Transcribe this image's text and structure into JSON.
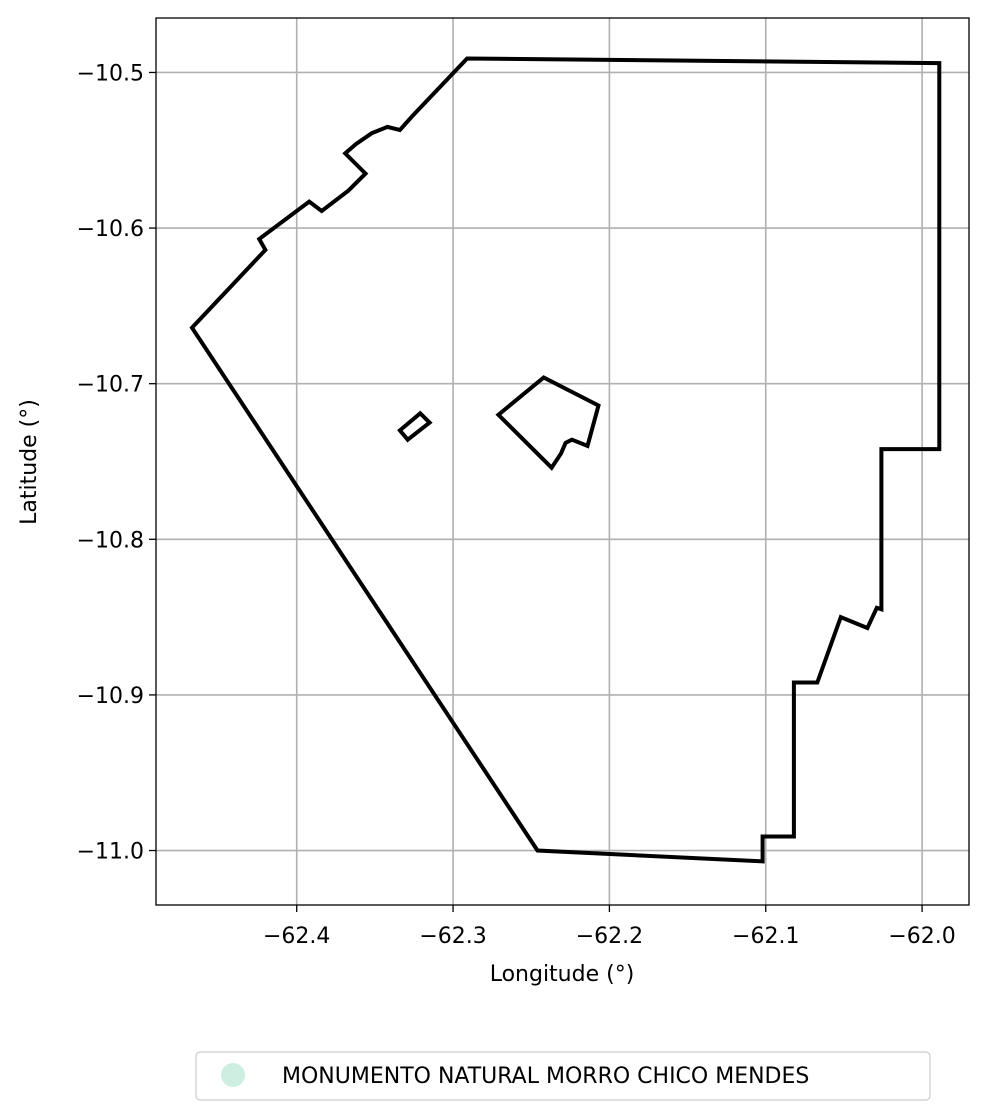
{
  "chart_data": {
    "type": "map",
    "xlabel": "Longitude (°)",
    "ylabel": "Latitude (°)",
    "xlim": [
      -62.49,
      -61.97
    ],
    "ylim": [
      -11.035,
      -10.465
    ],
    "grid": true,
    "x_ticks": [
      {
        "value": -62.4,
        "label": "−62.4"
      },
      {
        "value": -62.3,
        "label": "−62.3"
      },
      {
        "value": -62.2,
        "label": "−62.2"
      },
      {
        "value": -62.1,
        "label": "−62.1"
      },
      {
        "value": -62.0,
        "label": "−62.0"
      }
    ],
    "y_ticks": [
      {
        "value": -10.5,
        "label": "−10.5"
      },
      {
        "value": -10.6,
        "label": "−10.6"
      },
      {
        "value": -10.7,
        "label": "−10.7"
      },
      {
        "value": -10.8,
        "label": "−10.8"
      },
      {
        "value": -10.9,
        "label": "−10.9"
      },
      {
        "value": -11.0,
        "label": "−11.0"
      }
    ],
    "legend": {
      "placement": "bottom-center",
      "entries": [
        {
          "label": "MONUMENTO NATURAL MORRO CHICO MENDES",
          "color": "#cdeee0"
        }
      ]
    },
    "boundary_color": "#000000",
    "polygons": [
      {
        "name": "outer-boundary",
        "coords": [
          [
            -62.291,
            -10.491
          ],
          [
            -61.989,
            -10.494
          ],
          [
            -61.989,
            -10.742
          ],
          [
            -62.026,
            -10.742
          ],
          [
            -62.026,
            -10.845
          ],
          [
            -62.029,
            -10.844
          ],
          [
            -62.035,
            -10.857
          ],
          [
            -62.052,
            -10.85
          ],
          [
            -62.067,
            -10.892
          ],
          [
            -62.082,
            -10.892
          ],
          [
            -62.082,
            -10.991
          ],
          [
            -62.102,
            -10.991
          ],
          [
            -62.102,
            -11.007
          ],
          [
            -62.246,
            -11.0
          ],
          [
            -62.467,
            -10.664
          ],
          [
            -62.42,
            -10.614
          ],
          [
            -62.424,
            -10.607
          ],
          [
            -62.392,
            -10.583
          ],
          [
            -62.384,
            -10.589
          ],
          [
            -62.367,
            -10.576
          ],
          [
            -62.356,
            -10.565
          ],
          [
            -62.369,
            -10.552
          ],
          [
            -62.362,
            -10.546
          ],
          [
            -62.352,
            -10.539
          ],
          [
            -62.342,
            -10.535
          ],
          [
            -62.334,
            -10.537
          ],
          [
            -62.326,
            -10.528
          ],
          [
            -62.291,
            -10.491
          ]
        ]
      },
      {
        "name": "hole-small",
        "coords": [
          [
            -62.334,
            -10.73
          ],
          [
            -62.321,
            -10.719
          ],
          [
            -62.315,
            -10.725
          ],
          [
            -62.329,
            -10.736
          ],
          [
            -62.334,
            -10.73
          ]
        ]
      },
      {
        "name": "hole-large",
        "coords": [
          [
            -62.271,
            -10.72
          ],
          [
            -62.242,
            -10.696
          ],
          [
            -62.207,
            -10.714
          ],
          [
            -62.214,
            -10.74
          ],
          [
            -62.224,
            -10.736
          ],
          [
            -62.228,
            -10.738
          ],
          [
            -62.231,
            -10.745
          ],
          [
            -62.237,
            -10.754
          ],
          [
            -62.271,
            -10.72
          ]
        ]
      }
    ]
  }
}
